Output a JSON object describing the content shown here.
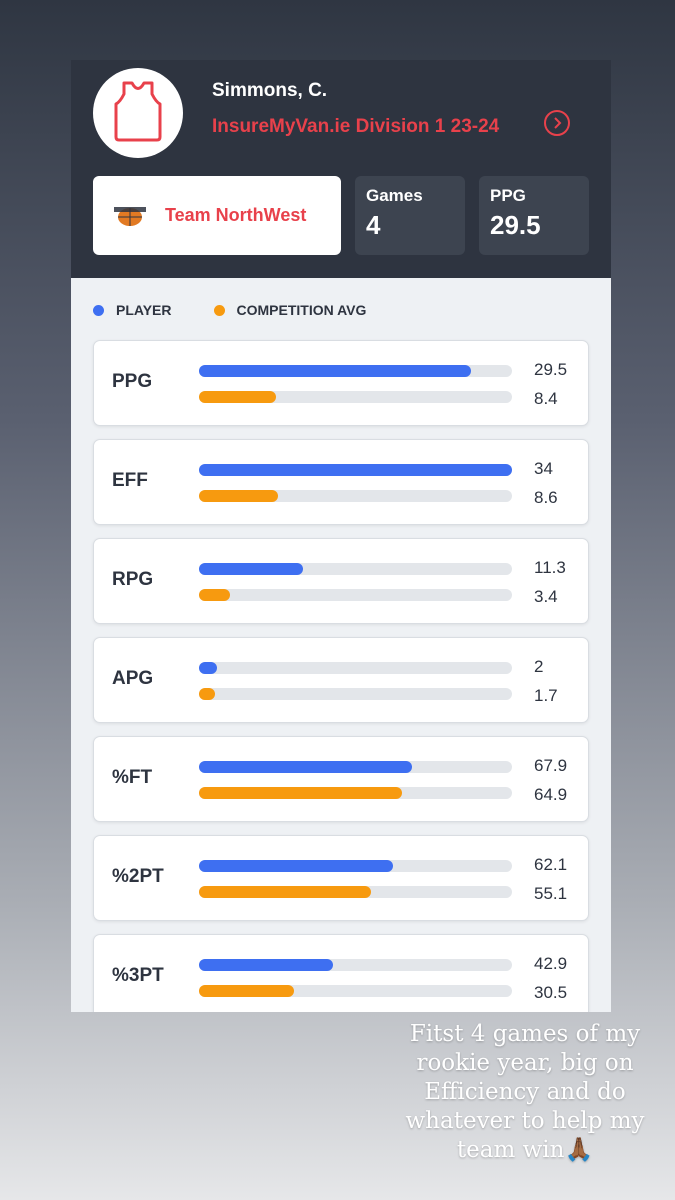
{
  "player": {
    "name": "Simmons, C.",
    "competition": "InsureMyVan.ie Division 1 23-24",
    "team": "Team NorthWest",
    "jersey_icon": "jersey-icon",
    "team_logo_icon": "team-logo-icon"
  },
  "stats": {
    "games_label": "Games",
    "games_value": "4",
    "ppg_label": "PPG",
    "ppg_value": "29.5"
  },
  "legend": {
    "player": "PLAYER",
    "avg": "COMPETITION AVG"
  },
  "colors": {
    "player": "#3e6ff1",
    "avg": "#f79a0f",
    "accent": "#e8414b"
  },
  "chart_data": {
    "type": "bar",
    "categories": [
      "PPG",
      "EFF",
      "RPG",
      "APG",
      "%FT",
      "%2PT",
      "%3PT"
    ],
    "series": [
      {
        "name": "PLAYER",
        "values": [
          29.5,
          34,
          11.3,
          2,
          67.9,
          62.1,
          42.9
        ]
      },
      {
        "name": "COMPETITION AVG",
        "values": [
          8.4,
          8.6,
          3.4,
          1.7,
          64.9,
          55.1,
          30.5
        ]
      }
    ],
    "max_per_category": [
      34,
      34,
      34,
      34,
      100,
      100,
      100
    ]
  },
  "rows": [
    {
      "label": "PPG",
      "player": "29.5",
      "avg": "8.4"
    },
    {
      "label": "EFF",
      "player": "34",
      "avg": "8.6"
    },
    {
      "label": "RPG",
      "player": "11.3",
      "avg": "3.4"
    },
    {
      "label": "APG",
      "player": "2",
      "avg": "1.7"
    },
    {
      "label": "%FT",
      "player": "67.9",
      "avg": "64.9"
    },
    {
      "label": "%2PT",
      "player": "62.1",
      "avg": "55.1"
    },
    {
      "label": "%3PT",
      "player": "42.9",
      "avg": "30.5"
    }
  ],
  "caption": "Fitst 4 games of my rookie year, big on Efficiency and do whatever to help my team win🙏🏾"
}
